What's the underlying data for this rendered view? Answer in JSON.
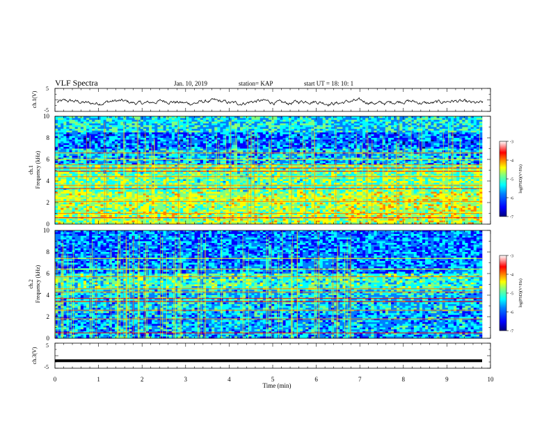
{
  "header": {
    "title": "VLF Spectra",
    "date": "Jan. 10, 2019",
    "station": "station= KAP",
    "start": "start  UT =   18: 10: 1"
  },
  "chart_data": [
    {
      "type": "line",
      "panel": "ch1-waveform",
      "ylabel": "ch.1(V)",
      "ylim": [
        -5,
        5
      ],
      "yticks": [
        "5",
        "-5"
      ],
      "xlim": [
        0,
        10
      ],
      "description_series": "noisy voltage trace oscillating roughly between -3 and +1 V"
    },
    {
      "type": "heatmap",
      "panel": "ch1-spectrogram",
      "ylabel_top": "ch.1",
      "ylabel": "Frequency (kHz)",
      "ylim": [
        0,
        10
      ],
      "yticks": [
        "0",
        "2",
        "4",
        "6",
        "8",
        "10"
      ],
      "xlim": [
        0,
        10
      ],
      "colorbar": {
        "label": "log(PSD)(V²/Hz)",
        "range": [
          -7,
          -3
        ],
        "ticks": [
          "-3",
          "-4",
          "-5",
          "-6",
          "-7"
        ],
        "colors": [
          "#00007f",
          "#0000ff",
          "#0080ff",
          "#00ffff",
          "#80ff80",
          "#ffff00",
          "#ff8000",
          "#ff0000",
          "#ffb0b0",
          "#ffffff"
        ]
      }
    },
    {
      "type": "heatmap",
      "panel": "ch2-spectrogram",
      "ylabel_top": "ch.2",
      "ylabel": "Frequency (kHz)",
      "ylim": [
        0,
        10
      ],
      "yticks": [
        "0",
        "2",
        "4",
        "6",
        "8",
        "10"
      ],
      "xlim": [
        0,
        10
      ],
      "colorbar": {
        "label": "log(PSD)(V²/Hz)",
        "range": [
          -7,
          -3
        ],
        "ticks": [
          "-3",
          "-4",
          "-5",
          "-6",
          "-7"
        ],
        "colors": [
          "#00007f",
          "#0000ff",
          "#0080ff",
          "#00ffff",
          "#80ff80",
          "#ffff00",
          "#ff8000",
          "#ff0000",
          "#ffb0b0",
          "#ffffff"
        ]
      }
    },
    {
      "type": "line",
      "panel": "ch3-waveform",
      "ylabel": "ch.3(V)",
      "ylim": [
        -5,
        5
      ],
      "yticks": [
        "5",
        "-5"
      ],
      "xlim": [
        0,
        10
      ],
      "constant_value": -2
    }
  ],
  "xaxis": {
    "label": "Time (min)",
    "ticks": [
      "0",
      "1",
      "2",
      "3",
      "4",
      "5",
      "6",
      "7",
      "8",
      "9",
      "10"
    ]
  }
}
